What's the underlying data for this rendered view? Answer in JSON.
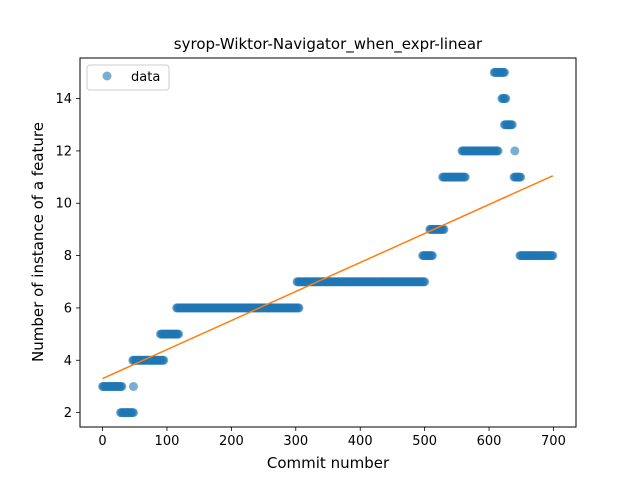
{
  "chart_data": {
    "type": "scatter",
    "title": "syrop-Wiktor-Navigator_when_expr-linear",
    "xlabel": "Commit number",
    "ylabel": "Number of instance of a feature",
    "xlim": [
      -35,
      735
    ],
    "ylim": [
      1.45,
      15.55
    ],
    "xticks": [
      0,
      100,
      200,
      300,
      400,
      500,
      600,
      700
    ],
    "yticks": [
      2,
      4,
      6,
      8,
      10,
      12,
      14
    ],
    "grid": false,
    "legend": {
      "placement": "top-left",
      "entries": [
        "data"
      ]
    },
    "colors": {
      "data": "#1f77b4",
      "fit": "#ff7f0e"
    },
    "series": [
      {
        "name": "data",
        "kind": "scatter",
        "segments": [
          {
            "x_start": 0,
            "x_end": 30,
            "y": 3
          },
          {
            "x_start": 28,
            "x_end": 48,
            "y": 2
          },
          {
            "x_start": 48,
            "x_end": 48,
            "y": 3
          },
          {
            "x_start": 47,
            "x_end": 95,
            "y": 4
          },
          {
            "x_start": 90,
            "x_end": 118,
            "y": 5
          },
          {
            "x_start": 115,
            "x_end": 305,
            "y": 6
          },
          {
            "x_start": 302,
            "x_end": 500,
            "y": 7
          },
          {
            "x_start": 497,
            "x_end": 512,
            "y": 8
          },
          {
            "x_start": 508,
            "x_end": 530,
            "y": 9
          },
          {
            "x_start": 528,
            "x_end": 563,
            "y": 11
          },
          {
            "x_start": 558,
            "x_end": 614,
            "y": 12
          },
          {
            "x_start": 608,
            "x_end": 624,
            "y": 15
          },
          {
            "x_start": 620,
            "x_end": 626,
            "y": 14
          },
          {
            "x_start": 624,
            "x_end": 636,
            "y": 13
          },
          {
            "x_start": 640,
            "x_end": 640,
            "y": 12
          },
          {
            "x_start": 639,
            "x_end": 649,
            "y": 11
          },
          {
            "x_start": 648,
            "x_end": 699,
            "y": 8
          }
        ]
      },
      {
        "name": "fit",
        "kind": "line",
        "x": [
          0,
          699
        ],
        "y": [
          3.3,
          11.05
        ]
      }
    ]
  }
}
